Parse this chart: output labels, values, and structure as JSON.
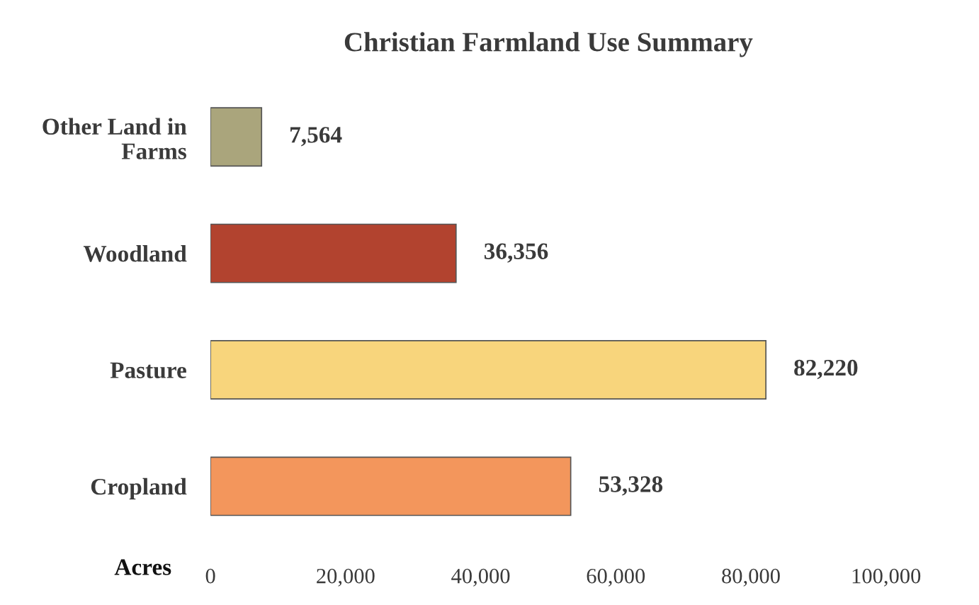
{
  "chart_data": {
    "type": "bar",
    "orientation": "horizontal",
    "title": "Christian Farmland Use Summary",
    "xlabel": "Acres",
    "categories": [
      "Other Land in\nFarms",
      "Woodland",
      "Pasture",
      "Cropland"
    ],
    "values": [
      7564,
      36356,
      82220,
      53328
    ],
    "colors": [
      "#aaa57c",
      "#b2432f",
      "#f8d57c",
      "#f3965c"
    ],
    "value_labels": [
      "7,564",
      "36,356",
      "82,220",
      "53,328"
    ],
    "xlim": [
      0,
      100000
    ],
    "xticks": [
      0,
      {
        "value": 20000,
        "label": "20,000"
      },
      {
        "value": 40000,
        "label": "40,000"
      },
      {
        "value": 60000,
        "label": "60,000"
      },
      {
        "value": 80000,
        "label": "80,000"
      },
      {
        "value": 100000,
        "label": "100,000"
      }
    ],
    "grid": false,
    "legend": false
  }
}
